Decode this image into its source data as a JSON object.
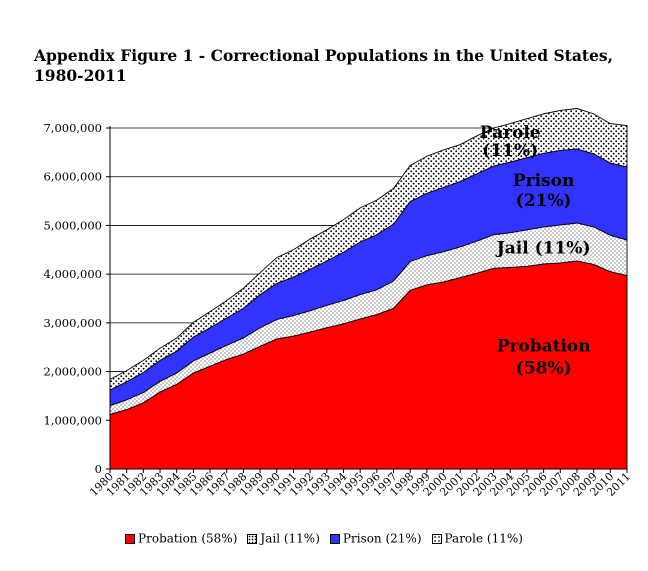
{
  "chart_data": {
    "type": "area",
    "stacked": true,
    "title": "Appendix Figure 1 - Correctional Populations in the United States, 1980-2011",
    "x": [
      "1980",
      "1981",
      "1982",
      "1983",
      "1984",
      "1985",
      "1986",
      "1987",
      "1988",
      "1989",
      "1990",
      "1991",
      "1992",
      "1993",
      "1994",
      "1995",
      "1996",
      "1997",
      "1998",
      "1999",
      "2000",
      "2001",
      "2002",
      "2003",
      "2004",
      "2005",
      "2006",
      "2007",
      "2008",
      "2009",
      "2010",
      "2011"
    ],
    "ylim": [
      0,
      7000000
    ],
    "yticks": [
      0,
      1000000,
      2000000,
      3000000,
      4000000,
      5000000,
      6000000,
      7000000
    ],
    "ytick_labels": [
      "0",
      "1,000,000",
      "2,000,000",
      "3,000,000",
      "4,000,000",
      "5,000,000",
      "6,000,000",
      "7,000,000"
    ],
    "grid": "horizontal",
    "legend_position": "bottom",
    "series": [
      {
        "name": "Probation (58%)",
        "color": "#ff0000",
        "pattern": "solid",
        "values": [
          1120000,
          1220000,
          1360000,
          1580000,
          1740000,
          1970000,
          2110000,
          2250000,
          2360000,
          2520000,
          2670000,
          2730000,
          2810000,
          2900000,
          2980000,
          3080000,
          3170000,
          3300000,
          3670000,
          3780000,
          3840000,
          3930000,
          4020000,
          4120000,
          4140000,
          4160000,
          4210000,
          4230000,
          4270000,
          4200000,
          4050000,
          3970000
        ]
      },
      {
        "name": "Jail (11%)",
        "color": "#ffffff",
        "pattern": "fine-dots",
        "values": [
          180000,
          200000,
          210000,
          220000,
          230000,
          250000,
          270000,
          290000,
          330000,
          380000,
          400000,
          420000,
          440000,
          460000,
          480000,
          500000,
          510000,
          560000,
          590000,
          600000,
          620000,
          630000,
          660000,
          690000,
          710000,
          750000,
          760000,
          780000,
          780000,
          770000,
          750000,
          730000
        ]
      },
      {
        "name": "Prison (21%)",
        "color": "#3333ff",
        "pattern": "solid",
        "values": [
          320000,
          370000,
          410000,
          430000,
          450000,
          490000,
          520000,
          560000,
          610000,
          680000,
          740000,
          790000,
          850000,
          910000,
          990000,
          1080000,
          1130000,
          1170000,
          1230000,
          1280000,
          1320000,
          1340000,
          1380000,
          1410000,
          1450000,
          1480000,
          1510000,
          1530000,
          1520000,
          1500000,
          1480000,
          1500000
        ]
      },
      {
        "name": "Parole (11%)",
        "color": "#ffffff",
        "pattern": "coarse-dots",
        "values": [
          220000,
          230000,
          250000,
          250000,
          270000,
          300000,
          330000,
          360000,
          410000,
          450000,
          530000,
          560000,
          620000,
          640000,
          670000,
          700000,
          710000,
          730000,
          740000,
          760000,
          770000,
          760000,
          780000,
          780000,
          790000,
          800000,
          810000,
          820000,
          830000,
          820000,
          810000,
          850000
        ]
      }
    ],
    "annotations": [
      {
        "series": "Parole (11%)",
        "lines": [
          "Parole",
          "(11%)"
        ]
      },
      {
        "series": "Prison (21%)",
        "lines": [
          "Prison",
          "(21%)"
        ]
      },
      {
        "series": "Jail (11%)",
        "lines": [
          "Jail (11%)"
        ]
      },
      {
        "series": "Probation (58%)",
        "lines": [
          "Probation",
          "(58%)"
        ]
      }
    ]
  }
}
